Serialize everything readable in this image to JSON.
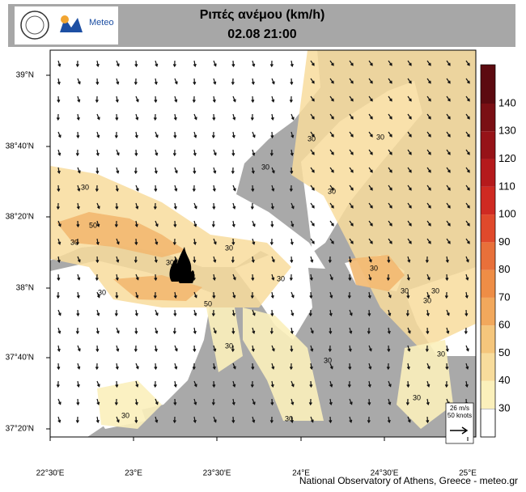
{
  "header": {
    "logo_text": "Meteo",
    "title": "Ριπές ανέμου (km/h)",
    "subtitle": "02.08 21:00"
  },
  "map": {
    "x_labels": [
      "22°30'E",
      "23°E",
      "23°30'E",
      "24°E",
      "24°30'E",
      "25°E"
    ],
    "y_labels": [
      "39°N",
      "38°40'N",
      "38°20'N",
      "38°N",
      "37°40'N",
      "37°20'N"
    ],
    "contour_labels": [
      "30",
      "30",
      "30",
      "30",
      "30",
      "50",
      "30",
      "30",
      "30",
      "30",
      "30",
      "50",
      "30",
      "30",
      "30",
      "30",
      "30",
      "30",
      "30",
      "30",
      "30",
      "30"
    ]
  },
  "colorbar": {
    "levels": [
      30,
      40,
      50,
      60,
      70,
      80,
      90,
      100,
      110,
      120,
      130,
      140
    ],
    "colors": [
      "#fbf0bb",
      "#f8dc9c",
      "#f5c67c",
      "#f2a85c",
      "#ee8d46",
      "#e8703a",
      "#e0492b",
      "#cf2a22",
      "#b51a1c",
      "#961318",
      "#7a0f14",
      "#5c0a10"
    ]
  },
  "wind_legend": {
    "speed": "26 m/s",
    "knots": "50 knots"
  },
  "credit": "National Observatory of Athens, Greece - meteo.gr"
}
